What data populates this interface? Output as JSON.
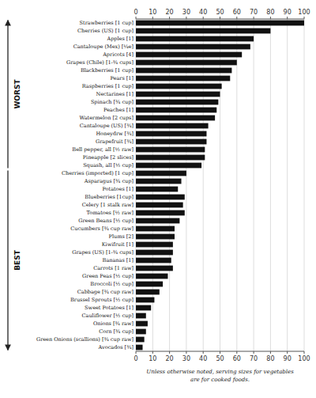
{
  "chart_data": {
    "type": "bar",
    "orientation": "horizontal",
    "categories": [
      "Strawberries [1 cup]",
      "Cherries (US) [1 cup]",
      "Apples [1]",
      "Cantaloupe (Mex) [¼e]",
      "Apricots [4]",
      "Grapes (Chile) [1-¾ cups]",
      "Blackberries [1 cup]",
      "Pears [1]",
      "Raspberries [1 cup]",
      "Nectarines [1]",
      "Spinach [¾ cup]",
      "Peaches [1]",
      "Watermelon [2 cups]",
      "Cantaloupe (US) [¾]",
      "Honeydrw [¾]",
      "Grapefruit [¾]",
      "Bell pepper, all [½ raw]",
      "Pineapple [2 slices]",
      "Squash, all [½ cup]",
      "Cherries (imported) [1 cup]",
      "Asparagus [¾ cup]",
      "Potatoes [1]",
      "Blueberries [1cup]",
      "Celery [1 stalk raw]",
      "Tomatoes [½ raw]",
      "Green Beans [½ cup]",
      "Cucumbers [¾ cup raw]",
      "Plums [2]",
      "Kiwifruit [1]",
      "Grapes (US) [1-¾ cups]",
      "Bananas [1]",
      "Carrots [1 raw]",
      "Green Peas [½ cup]",
      "Broccoli [½ cup]",
      "Cabbage [¾ cup raw]",
      "Brussel Sprouts [½ cup]",
      "Sweet Potatoes [1]",
      "Cauliflower [½ cup]",
      "Onions [¾ raw]",
      "Corn [¾ cup]",
      "Green Onions (scallions) [¾ cup raw]",
      "Avocados [¾]"
    ],
    "values": [
      100,
      80,
      70,
      68,
      63,
      60,
      57,
      56,
      51,
      50,
      49,
      48,
      47,
      43,
      42,
      42,
      41,
      41,
      39,
      30,
      27,
      25,
      29,
      28,
      29,
      26,
      23,
      23,
      22,
      22,
      21,
      22,
      19,
      16,
      14,
      11,
      9,
      6,
      7,
      6,
      5,
      4
    ],
    "color": "#111111",
    "xlim": [
      0,
      100
    ],
    "xticks": [
      0,
      10,
      20,
      30,
      40,
      50,
      60,
      70,
      80,
      90,
      100
    ],
    "grid": true,
    "annotations": [
      {
        "text": "WORST",
        "from": "Strawberries [1 cup]",
        "to": "Squash, all [½ cup]",
        "direction": "up"
      },
      {
        "text": "BEST",
        "from": "Cherries (imported) [1 cup]",
        "to": "Avocados [¾]",
        "direction": "down"
      },
      {
        "text": "Unless otherwise noted, serving sizes for vegetables\nare for cooked foods."
      }
    ]
  }
}
